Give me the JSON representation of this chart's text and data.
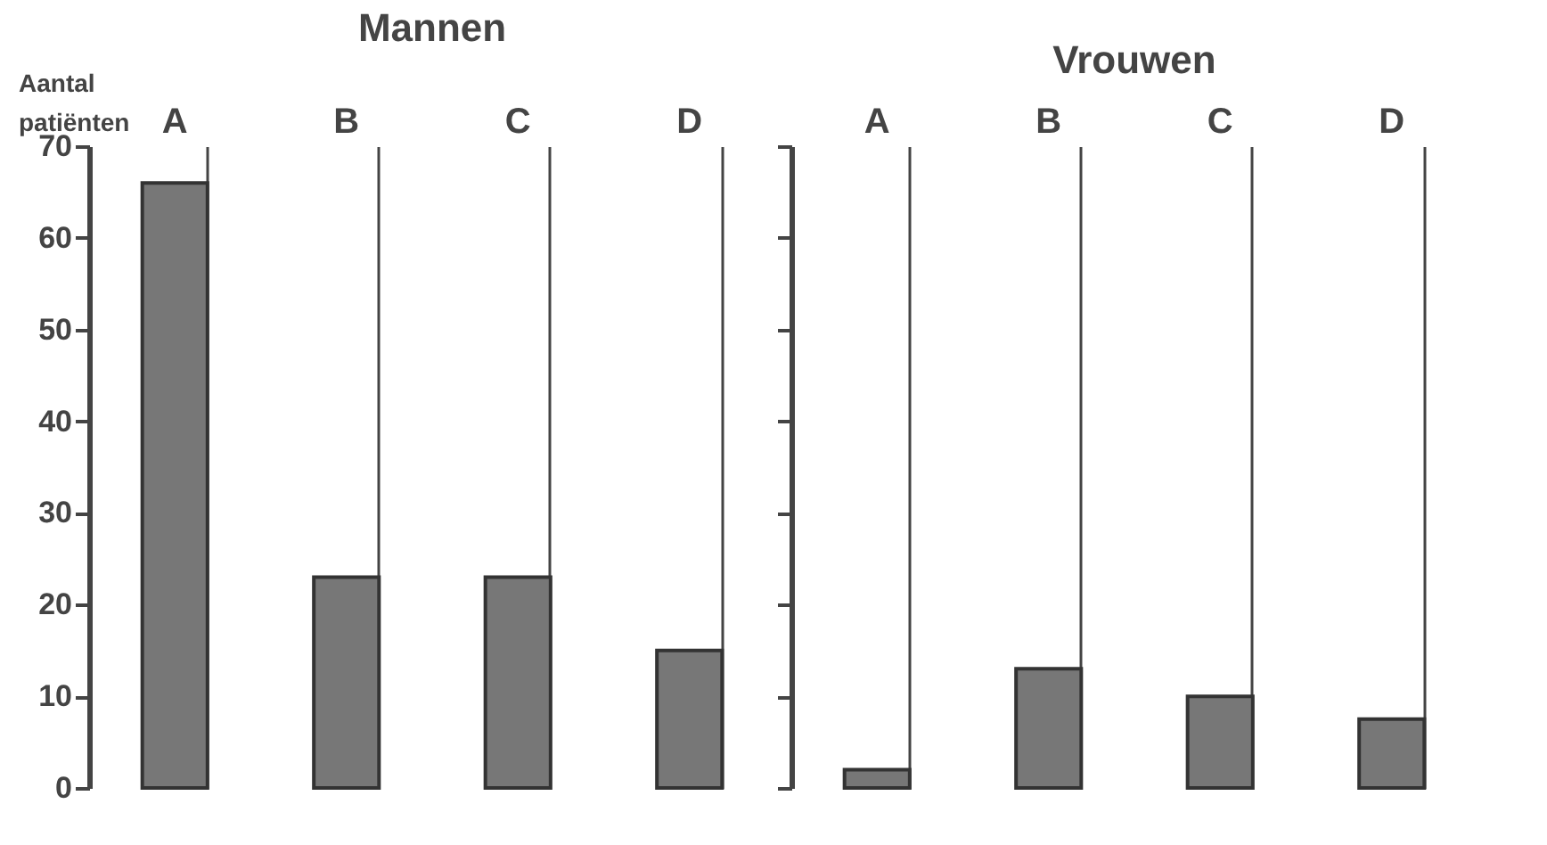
{
  "chart_data": [
    {
      "type": "bar",
      "title": "Mannen",
      "ylabel": "Aantal patiënten",
      "categories": [
        "A",
        "B",
        "C",
        "D"
      ],
      "values": [
        66,
        23,
        23,
        15
      ],
      "color": "#777777",
      "ylim": [
        0,
        70
      ],
      "yticks": [
        0,
        10,
        20,
        30,
        40,
        50,
        60,
        70
      ],
      "grid": "x"
    },
    {
      "type": "bar",
      "title": "Vrouwen",
      "categories": [
        "A",
        "B",
        "C",
        "D"
      ],
      "values": [
        2,
        13,
        10,
        7.5
      ],
      "color": "#777777",
      "ylim": [
        0,
        70
      ],
      "yticks": [
        0,
        10,
        20,
        30,
        40,
        50,
        60,
        70
      ],
      "grid": "x",
      "tick_labels": "x"
    }
  ]
}
